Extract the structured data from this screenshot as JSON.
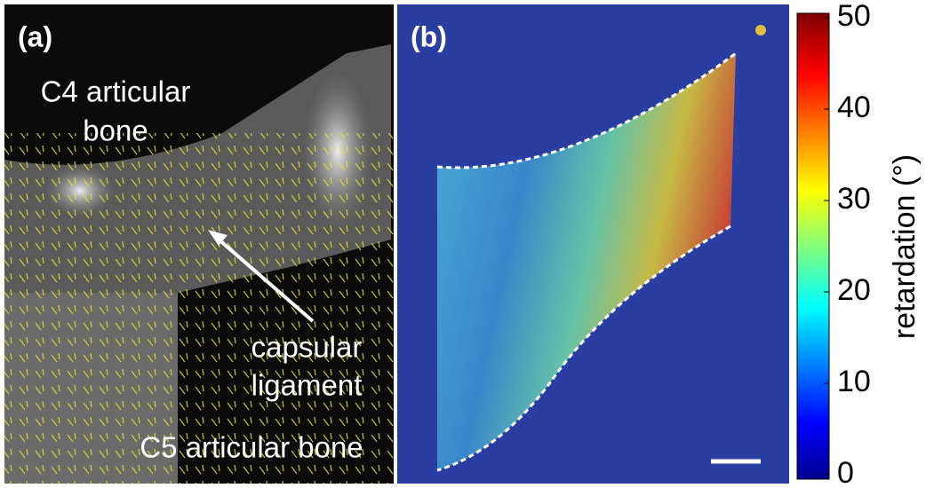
{
  "panels": [
    {
      "label": "(a)",
      "annotations": [
        "C4 articular",
        "bone",
        "capsular",
        "ligament",
        "C5 articular bone"
      ]
    },
    {
      "label": "(b)"
    }
  ],
  "colorbar": {
    "label": "retardation (°)",
    "lim": [
      0,
      50
    ],
    "ticks": [
      0,
      10,
      20,
      30,
      40,
      50
    ]
  }
}
